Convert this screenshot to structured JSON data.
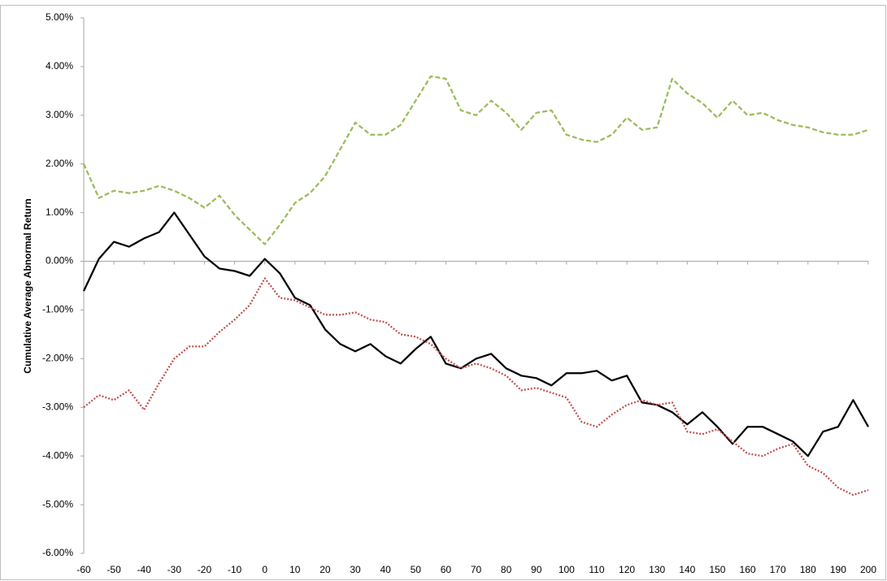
{
  "chart_data": {
    "type": "line",
    "y_label": "Cumulative Average Abnormal Return",
    "x": [
      -60,
      -55,
      -50,
      -45,
      -40,
      -35,
      -30,
      -25,
      -20,
      -15,
      -10,
      -5,
      0,
      5,
      10,
      15,
      20,
      25,
      30,
      35,
      40,
      45,
      50,
      55,
      60,
      65,
      70,
      75,
      80,
      85,
      90,
      95,
      100,
      105,
      110,
      115,
      120,
      125,
      130,
      135,
      140,
      145,
      150,
      155,
      160,
      165,
      170,
      175,
      180,
      185,
      190,
      195,
      200
    ],
    "series": [
      {
        "color": "#000000",
        "dash": "solid",
        "values": [
          -0.61,
          0.05,
          0.4,
          0.3,
          0.47,
          0.6,
          1.0,
          0.55,
          0.1,
          -0.15,
          -0.2,
          -0.3,
          0.05,
          -0.25,
          -0.75,
          -0.9,
          -1.4,
          -1.7,
          -1.85,
          -1.7,
          -1.95,
          -2.1,
          -1.8,
          -1.55,
          -2.1,
          -2.2,
          -2.0,
          -1.9,
          -2.2,
          -2.35,
          -2.4,
          -2.55,
          -2.3,
          -2.3,
          -2.25,
          -2.45,
          -2.35,
          -2.9,
          -2.95,
          -3.1,
          -3.35,
          -3.1,
          -3.4,
          -3.75,
          -3.4,
          -3.4,
          -3.55,
          -3.7,
          -4.0,
          -3.5,
          -3.4,
          -2.85,
          -3.4
        ]
      },
      {
        "color": "#9bbb59",
        "dash": "dashed",
        "values": [
          2.0,
          1.3,
          1.45,
          1.4,
          1.45,
          1.55,
          1.45,
          1.3,
          1.1,
          1.35,
          0.95,
          0.65,
          0.35,
          0.75,
          1.2,
          1.4,
          1.75,
          2.3,
          2.85,
          2.6,
          2.6,
          2.8,
          3.3,
          3.8,
          3.75,
          3.1,
          3.0,
          3.3,
          3.05,
          2.7,
          3.05,
          3.1,
          2.6,
          2.5,
          2.45,
          2.6,
          2.95,
          2.7,
          2.75,
          3.75,
          3.45,
          3.25,
          2.95,
          3.3,
          3.0,
          3.05,
          2.9,
          2.8,
          2.75,
          2.65,
          2.6,
          2.6,
          2.7
        ]
      },
      {
        "color": "#c0504d",
        "dash": "dotted",
        "values": [
          -3.0,
          -2.75,
          -2.85,
          -2.65,
          -3.05,
          -2.5,
          -2.0,
          -1.75,
          -1.75,
          -1.45,
          -1.2,
          -0.9,
          -0.35,
          -0.75,
          -0.8,
          -0.95,
          -1.1,
          -1.1,
          -1.05,
          -1.2,
          -1.25,
          -1.5,
          -1.55,
          -1.7,
          -2.0,
          -2.2,
          -2.1,
          -2.2,
          -2.35,
          -2.65,
          -2.6,
          -2.7,
          -2.8,
          -3.3,
          -3.4,
          -3.15,
          -2.95,
          -2.85,
          -2.95,
          -2.9,
          -3.5,
          -3.55,
          -3.45,
          -3.7,
          -3.95,
          -4.0,
          -3.85,
          -3.75,
          -4.2,
          -4.35,
          -4.65,
          -4.8,
          -4.7
        ]
      }
    ],
    "xlim": [
      -60,
      200
    ],
    "xticks": [
      -60,
      -50,
      -40,
      -30,
      -20,
      -10,
      0,
      10,
      20,
      30,
      40,
      50,
      60,
      70,
      80,
      90,
      100,
      110,
      120,
      130,
      140,
      150,
      160,
      170,
      180,
      190,
      200
    ],
    "ylim": [
      -6,
      5
    ],
    "yticks": [
      {
        "value": 5,
        "label": "5.00%"
      },
      {
        "value": 4,
        "label": "4.00%"
      },
      {
        "value": 3,
        "label": "3.00%"
      },
      {
        "value": 2,
        "label": "2.00%"
      },
      {
        "value": 1,
        "label": "1.00%"
      },
      {
        "value": 0,
        "label": "0.00%"
      },
      {
        "value": -1,
        "label": "-1.00%"
      },
      {
        "value": -2,
        "label": "-2.00%"
      },
      {
        "value": -3,
        "label": "-3.00%"
      },
      {
        "value": -4,
        "label": "-4.00%"
      },
      {
        "value": -5,
        "label": "-5.00%"
      },
      {
        "value": -6,
        "label": "-6.00%"
      }
    ],
    "grid": false
  }
}
